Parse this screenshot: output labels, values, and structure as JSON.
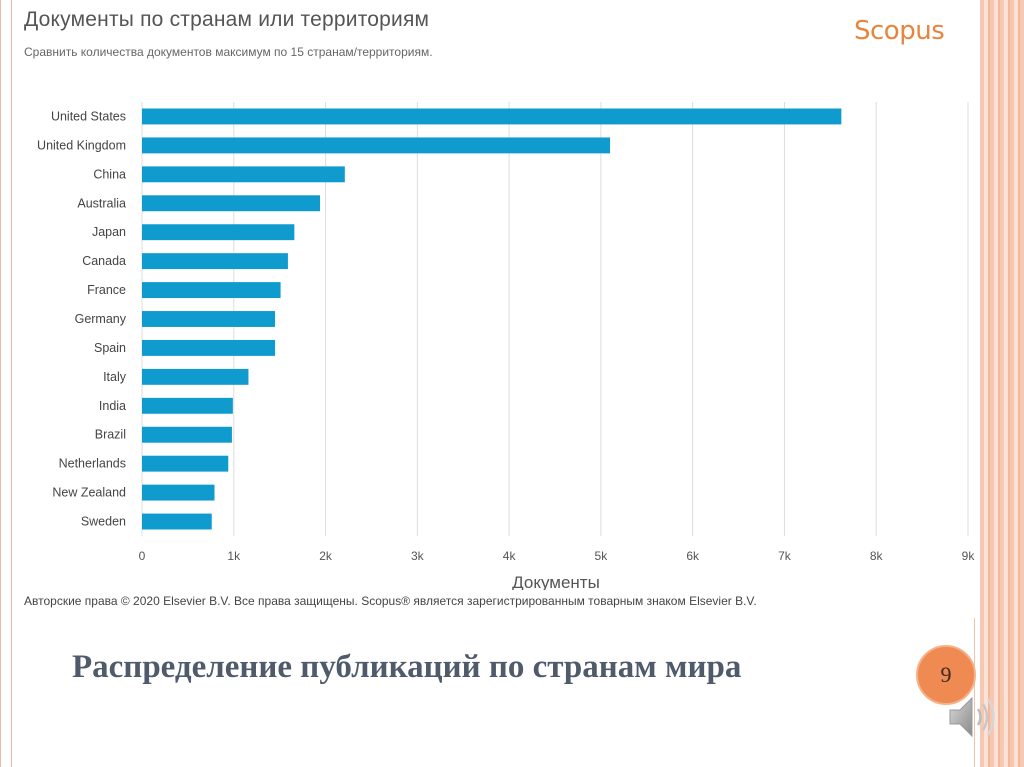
{
  "slide": {
    "title": "Распределение публикаций по странам мира",
    "page_number": "9"
  },
  "panel": {
    "title": "Документы по странам или территориям",
    "subtitle": "Сравнить количества документов максимум по 15 странам/территориям.",
    "logo": "Scopus",
    "copyright": "Авторские права © 2020 Elsevier B.V. Все права защищены. Scopus® является зарегистрированным товарным знаком Elsevier B.V."
  },
  "colors": {
    "bar": "#109bcf",
    "grid": "#dddddd",
    "badge": "#ef8a52",
    "logo": "#e8853d"
  },
  "icons": {
    "speaker": "speaker-icon"
  },
  "chart_data": {
    "type": "bar",
    "orientation": "horizontal",
    "categories": [
      "United States",
      "United Kingdom",
      "China",
      "Australia",
      "Japan",
      "Canada",
      "France",
      "Germany",
      "Spain",
      "Italy",
      "India",
      "Brazil",
      "Netherlands",
      "New Zealand",
      "Sweden"
    ],
    "values": [
      7620,
      5100,
      2210,
      1940,
      1660,
      1590,
      1510,
      1450,
      1450,
      1160,
      990,
      980,
      940,
      790,
      760
    ],
    "title": "",
    "xlabel": "Документы",
    "ylabel": "",
    "xlim": [
      0,
      9000
    ],
    "xticks": [
      0,
      1000,
      2000,
      3000,
      4000,
      5000,
      6000,
      7000,
      8000,
      9000
    ],
    "xtick_labels": [
      "0",
      "1k",
      "2k",
      "3k",
      "4k",
      "5k",
      "6k",
      "7k",
      "8k",
      "9k"
    ],
    "grid": true
  }
}
